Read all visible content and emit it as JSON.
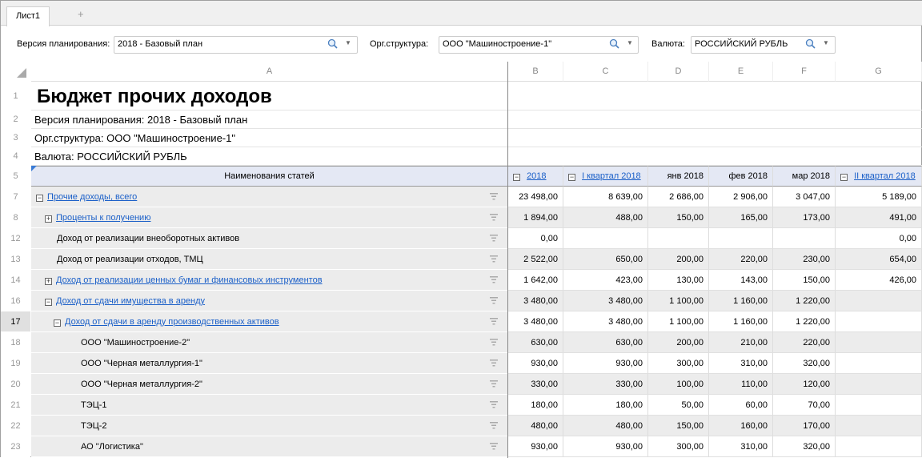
{
  "tabs": {
    "active": "Лист1",
    "add": "+"
  },
  "params": [
    {
      "label": "Версия планирования:",
      "value": "2018 - Базовый план"
    },
    {
      "label": "Орг.структура:",
      "value": "ООО \"Машиностроение-1\""
    },
    {
      "label": "Валюта:",
      "value": "РОССИЙСКИЙ РУБЛЬ"
    }
  ],
  "columns": [
    "A",
    "B",
    "C",
    "D",
    "E",
    "F",
    "G"
  ],
  "header_rows": {
    "r1": {
      "num": "1",
      "text": "Бюджет прочих доходов"
    },
    "r2": {
      "num": "2",
      "text": "Версия планирования: 2018 - Базовый план"
    },
    "r3": {
      "num": "3",
      "text": "Орг.структура: ООО \"Машиностроение-1\""
    },
    "r4": {
      "num": "4",
      "text": "Валюта: РОССИЙСКИЙ РУБЛЬ"
    }
  },
  "table_header": {
    "num": "5",
    "name": "Наименования статей",
    "cols": [
      {
        "label": "2018",
        "link": true,
        "toggle": "−"
      },
      {
        "label": "I квартал 2018",
        "link": true,
        "toggle": "−"
      },
      {
        "label": "янв 2018",
        "link": false
      },
      {
        "label": "фев 2018",
        "link": false
      },
      {
        "label": "мар 2018",
        "link": false
      },
      {
        "label": "II квартал 2018",
        "link": true,
        "toggle": "−"
      }
    ]
  },
  "rows": [
    {
      "num": "7",
      "name": "Прочие доходы, всего",
      "level": 0,
      "toggle": "−",
      "link": true,
      "values": [
        "23 498,00",
        "8 639,00",
        "2 686,00",
        "2 906,00",
        "3 047,00",
        "5 189,00"
      ]
    },
    {
      "num": "8",
      "name": "Проценты к получению",
      "level": 1,
      "toggle": "+",
      "link": true,
      "values": [
        "1 894,00",
        "488,00",
        "150,00",
        "165,00",
        "173,00",
        "491,00"
      ]
    },
    {
      "num": "12",
      "name": "Доход от реализации внеоборотных активов",
      "level": 1,
      "toggle": "",
      "link": false,
      "values": [
        "0,00",
        "",
        "",
        "",
        "",
        "0,00"
      ]
    },
    {
      "num": "13",
      "name": "Доход от реализации отходов, ТМЦ",
      "level": 1,
      "toggle": "",
      "link": false,
      "values": [
        "2 522,00",
        "650,00",
        "200,00",
        "220,00",
        "230,00",
        "654,00"
      ]
    },
    {
      "num": "14",
      "name": "Доход от реализации ценных бумаг и финансовых инструментов",
      "level": 1,
      "toggle": "+",
      "link": true,
      "values": [
        "1 642,00",
        "423,00",
        "130,00",
        "143,00",
        "150,00",
        "426,00"
      ]
    },
    {
      "num": "16",
      "name": "Доход от сдачи имущества в аренду",
      "level": 1,
      "toggle": "−",
      "link": true,
      "values": [
        "3 480,00",
        "3 480,00",
        "1 100,00",
        "1 160,00",
        "1 220,00",
        ""
      ]
    },
    {
      "num": "17",
      "name": "Доход от сдачи в аренду производственных активов",
      "level": 2,
      "toggle": "−",
      "link": true,
      "selected": true,
      "values": [
        "3 480,00",
        "3 480,00",
        "1 100,00",
        "1 160,00",
        "1 220,00",
        ""
      ]
    },
    {
      "num": "18",
      "name": "ООО \"Машиностроение-2\"",
      "level": 3,
      "toggle": "",
      "link": false,
      "values": [
        "630,00",
        "630,00",
        "200,00",
        "210,00",
        "220,00",
        ""
      ]
    },
    {
      "num": "19",
      "name": "ООО \"Черная металлургия-1\"",
      "level": 3,
      "toggle": "",
      "link": false,
      "values": [
        "930,00",
        "930,00",
        "300,00",
        "310,00",
        "320,00",
        ""
      ]
    },
    {
      "num": "20",
      "name": "ООО \"Черная металлургия-2\"",
      "level": 3,
      "toggle": "",
      "link": false,
      "values": [
        "330,00",
        "330,00",
        "100,00",
        "110,00",
        "120,00",
        ""
      ]
    },
    {
      "num": "21",
      "name": "ТЭЦ-1",
      "level": 3,
      "toggle": "",
      "link": false,
      "values": [
        "180,00",
        "180,00",
        "50,00",
        "60,00",
        "70,00",
        ""
      ]
    },
    {
      "num": "22",
      "name": "ТЭЦ-2",
      "level": 3,
      "toggle": "",
      "link": false,
      "values": [
        "480,00",
        "480,00",
        "150,00",
        "160,00",
        "170,00",
        ""
      ]
    },
    {
      "num": "23",
      "name": "АО \"Логистика\"",
      "level": 3,
      "toggle": "",
      "link": false,
      "values": [
        "930,00",
        "930,00",
        "300,00",
        "310,00",
        "320,00",
        ""
      ]
    }
  ],
  "colors": {
    "link": "#1a5fc8",
    "header_bg": "#e4e8f4",
    "name_bg": "#ececec",
    "alt_bg": "#ececec"
  }
}
